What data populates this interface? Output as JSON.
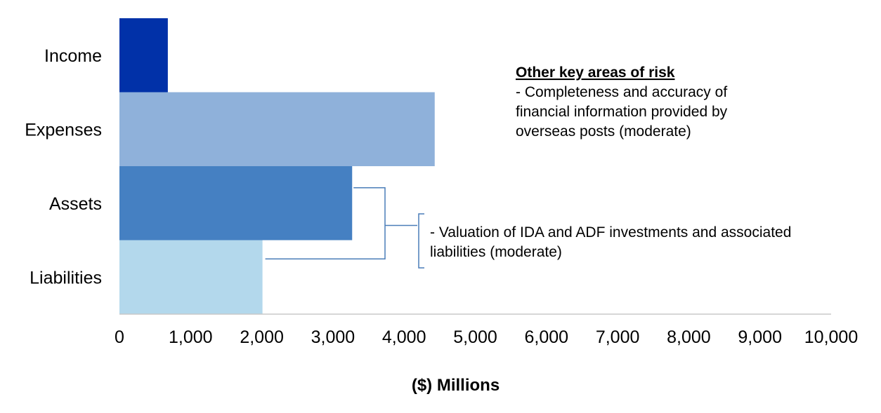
{
  "chart_data": {
    "type": "bar",
    "orientation": "horizontal",
    "categories": [
      "Income",
      "Expenses",
      "Assets",
      "Liabilities"
    ],
    "values": [
      680,
      4430,
      3270,
      2010
    ],
    "colors": [
      "#0131a8",
      "#8fb1da",
      "#4580c2",
      "#b3d8ec"
    ],
    "xlim": [
      0,
      10000
    ],
    "xticks": [
      0,
      1000,
      2000,
      3000,
      4000,
      5000,
      6000,
      7000,
      8000,
      9000,
      10000
    ],
    "xtick_labels": [
      "0",
      "1,000",
      "2,000",
      "3,000",
      "4,000",
      "5,000",
      "6,000",
      "7,000",
      "8,000",
      "9,000",
      "10,000"
    ],
    "xlabel": "($) Millions",
    "ylabel": "",
    "title": "",
    "grid": false,
    "bracket_color": "#4a7db8",
    "annotations": {
      "key_risks": {
        "heading": "Other key areas of risk",
        "lines": [
          "- Completeness and accuracy of",
          "financial information provided by",
          "overseas posts (moderate)"
        ]
      },
      "valuation": {
        "lines": [
          "- Valuation of IDA and ADF investments and associated",
          "liabilities (moderate)"
        ],
        "applies_to": [
          "Assets",
          "Liabilities"
        ]
      }
    }
  }
}
